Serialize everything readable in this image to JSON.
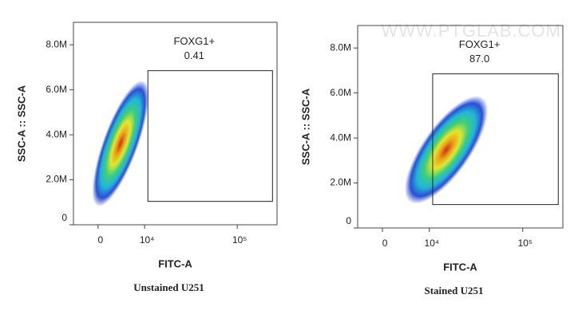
{
  "chart_data": [
    {
      "type": "scatter",
      "caption": "Unstained U251",
      "x_label": "FITC-A",
      "y_label": "SSC-A :: SSC-A",
      "xlim": [
        -4600,
        256000
      ],
      "xticks": [
        0,
        {
          "value": 10000,
          "label": "10⁴"
        },
        {
          "value": 100000,
          "label": "10⁵"
        }
      ],
      "ylim": [
        0,
        9000000
      ],
      "yticks": [
        0,
        {
          "value": 2000000,
          "label": "2.0M"
        },
        {
          "value": 4000000,
          "label": "4.0M"
        },
        {
          "value": 6000000,
          "label": "6.0M"
        },
        {
          "value": 8000000,
          "label": "8.0M"
        }
      ],
      "gate": {
        "name": "FOXG1+",
        "frequency": 0.41,
        "x": [
          11000,
          230000
        ],
        "y": [
          1040000,
          6850000
        ]
      }
    },
    {
      "type": "scatter",
      "caption": "Stained U251",
      "x_label": "FITC-A",
      "y_label": "SSC-A :: SSC-A",
      "watermark": "WWW.PTGLAB.COM",
      "xlim": [
        -4600,
        256000
      ],
      "xticks": [
        0,
        {
          "value": 10000,
          "label": "10⁴"
        },
        {
          "value": 100000,
          "label": "10⁵"
        }
      ],
      "ylim": [
        0,
        9000000
      ],
      "yticks": [
        0,
        {
          "value": 2000000,
          "label": "2.0M"
        },
        {
          "value": 4000000,
          "label": "4.0M"
        },
        {
          "value": 6000000,
          "label": "6.0M"
        },
        {
          "value": 8000000,
          "label": "8.0M"
        }
      ],
      "gate": {
        "name": "FOXG1+",
        "frequency": 87.0,
        "frequency_label": "87.0",
        "x": [
          11000,
          230000
        ],
        "y": [
          1040000,
          6850000
        ]
      }
    }
  ]
}
